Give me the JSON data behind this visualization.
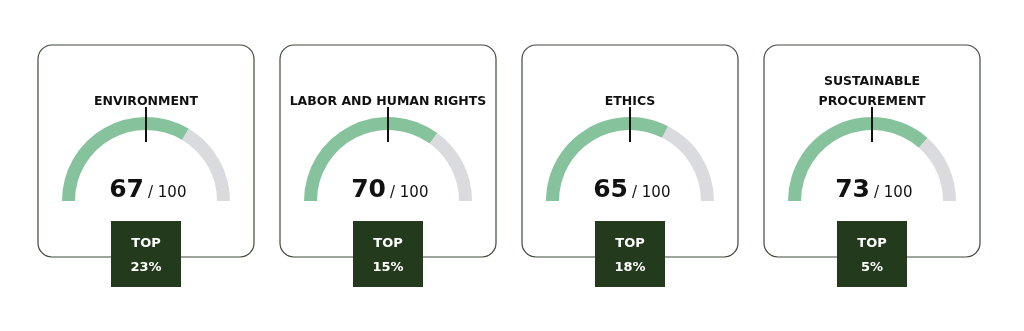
{
  "chart_data": [
    {
      "type": "donut",
      "title": "ENVIRONMENT",
      "categories": [
        null,
        null
      ],
      "values": [
        67,
        33
      ],
      "colors": [
        "#86c39c",
        "#dadbdf"
      ],
      "annotations": [
        "67",
        "/ 100",
        "TOP",
        "23%"
      ]
    },
    {
      "type": "donut",
      "title": "LABOR AND HUMAN RIGHTS",
      "categories": [
        null,
        null
      ],
      "values": [
        70,
        30
      ],
      "colors": [
        "#86c39c",
        "#dadbdf"
      ],
      "annotations": [
        "70",
        "/ 100",
        "TOP",
        "15%"
      ]
    },
    {
      "type": "donut",
      "title": "ETHICS",
      "categories": [
        null,
        null
      ],
      "values": [
        65,
        35
      ],
      "colors": [
        "#86c39c",
        "#dadbdf"
      ],
      "annotations": [
        "65",
        "/ 100",
        "TOP",
        "18%"
      ]
    },
    {
      "type": "donut",
      "title": "SUSTAINABLE PROCUREMENT",
      "categories": [
        null,
        null
      ],
      "values": [
        73,
        27
      ],
      "colors": [
        "#86c39c",
        "#dadbdf"
      ],
      "annotations": [
        "73",
        "/ 100",
        "TOP",
        "5%"
      ]
    }
  ]
}
